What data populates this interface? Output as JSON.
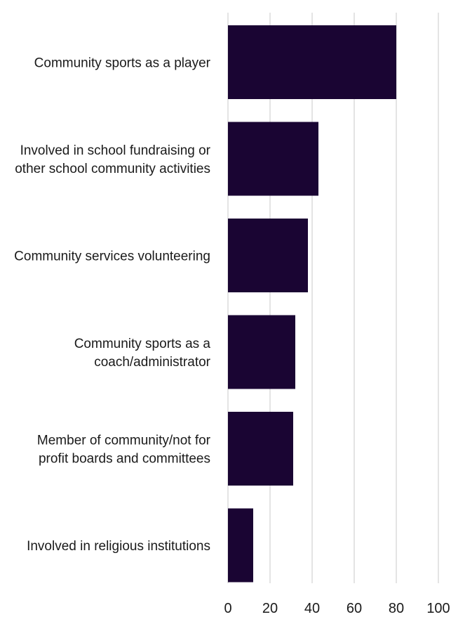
{
  "chart_data": {
    "type": "bar",
    "orientation": "horizontal",
    "categories": [
      [
        "Community sports as a player"
      ],
      [
        "Involved in school fundraising or",
        "other school community activities"
      ],
      [
        "Community services volunteering"
      ],
      [
        "Community sports as a",
        "coach/administrator"
      ],
      [
        "Member of community/not for",
        "profit boards and committees"
      ],
      [
        "Involved in religious institutions"
      ]
    ],
    "values": [
      80,
      43,
      38,
      32,
      31,
      12
    ],
    "xlim": [
      0,
      100
    ],
    "xticks": [
      "0",
      "20",
      "40",
      "60",
      "80",
      "100"
    ],
    "grid": true,
    "bar_color": "#1a0533",
    "title": "",
    "xlabel": "",
    "ylabel": ""
  }
}
